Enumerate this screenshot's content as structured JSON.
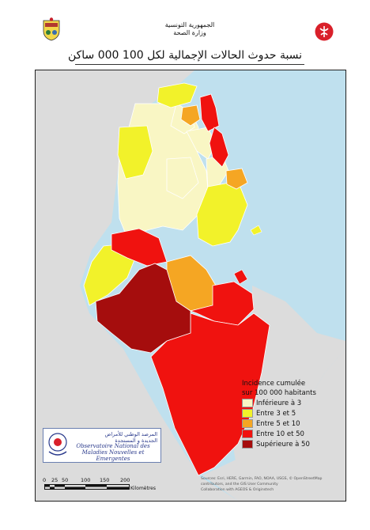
{
  "header": {
    "line1": "الجمهورية التونسية",
    "line2": "وزارة الصحة"
  },
  "title": "نسبة حدوث الحالات الإجمالية لكل 100 000 ساكن",
  "legend": {
    "title_line1": "Incidence cumulée",
    "title_line2": "sur 100 000 habitants",
    "items": [
      {
        "label": "Inférieure à 3",
        "color": "#f9f6c4"
      },
      {
        "label": "Entre 3 et 5",
        "color": "#f2f22a"
      },
      {
        "label": "Entre 5 et 10",
        "color": "#f5a623"
      },
      {
        "label": "Entre 10 et 50",
        "color": "#f0120f"
      },
      {
        "label": "Supérieure à 50",
        "color": "#a50d0d"
      }
    ]
  },
  "logo": {
    "arabic_line1": "المرصد الوطني للأمراض",
    "arabic_line2": "الجديدة و المستجدة",
    "french_line1": "Observatoire National des",
    "french_line2": "Maladies Nouvelles et Emergentes"
  },
  "scale": {
    "ticks": [
      "0",
      "25",
      "50",
      "100",
      "150",
      "200"
    ],
    "unit": "Kilomètres"
  },
  "credits": {
    "line1": "Sources: Esri, HERE, Garmin, FAO, NOAA, USGS, © OpenStreetMap",
    "line2": "contributors, and the GIS User Community",
    "line3": "Collaboration with AGEOS & Originstech"
  },
  "colors": {
    "sea": "#bfe0ee",
    "land": "#dcdcdc",
    "border": "#ffffff"
  }
}
